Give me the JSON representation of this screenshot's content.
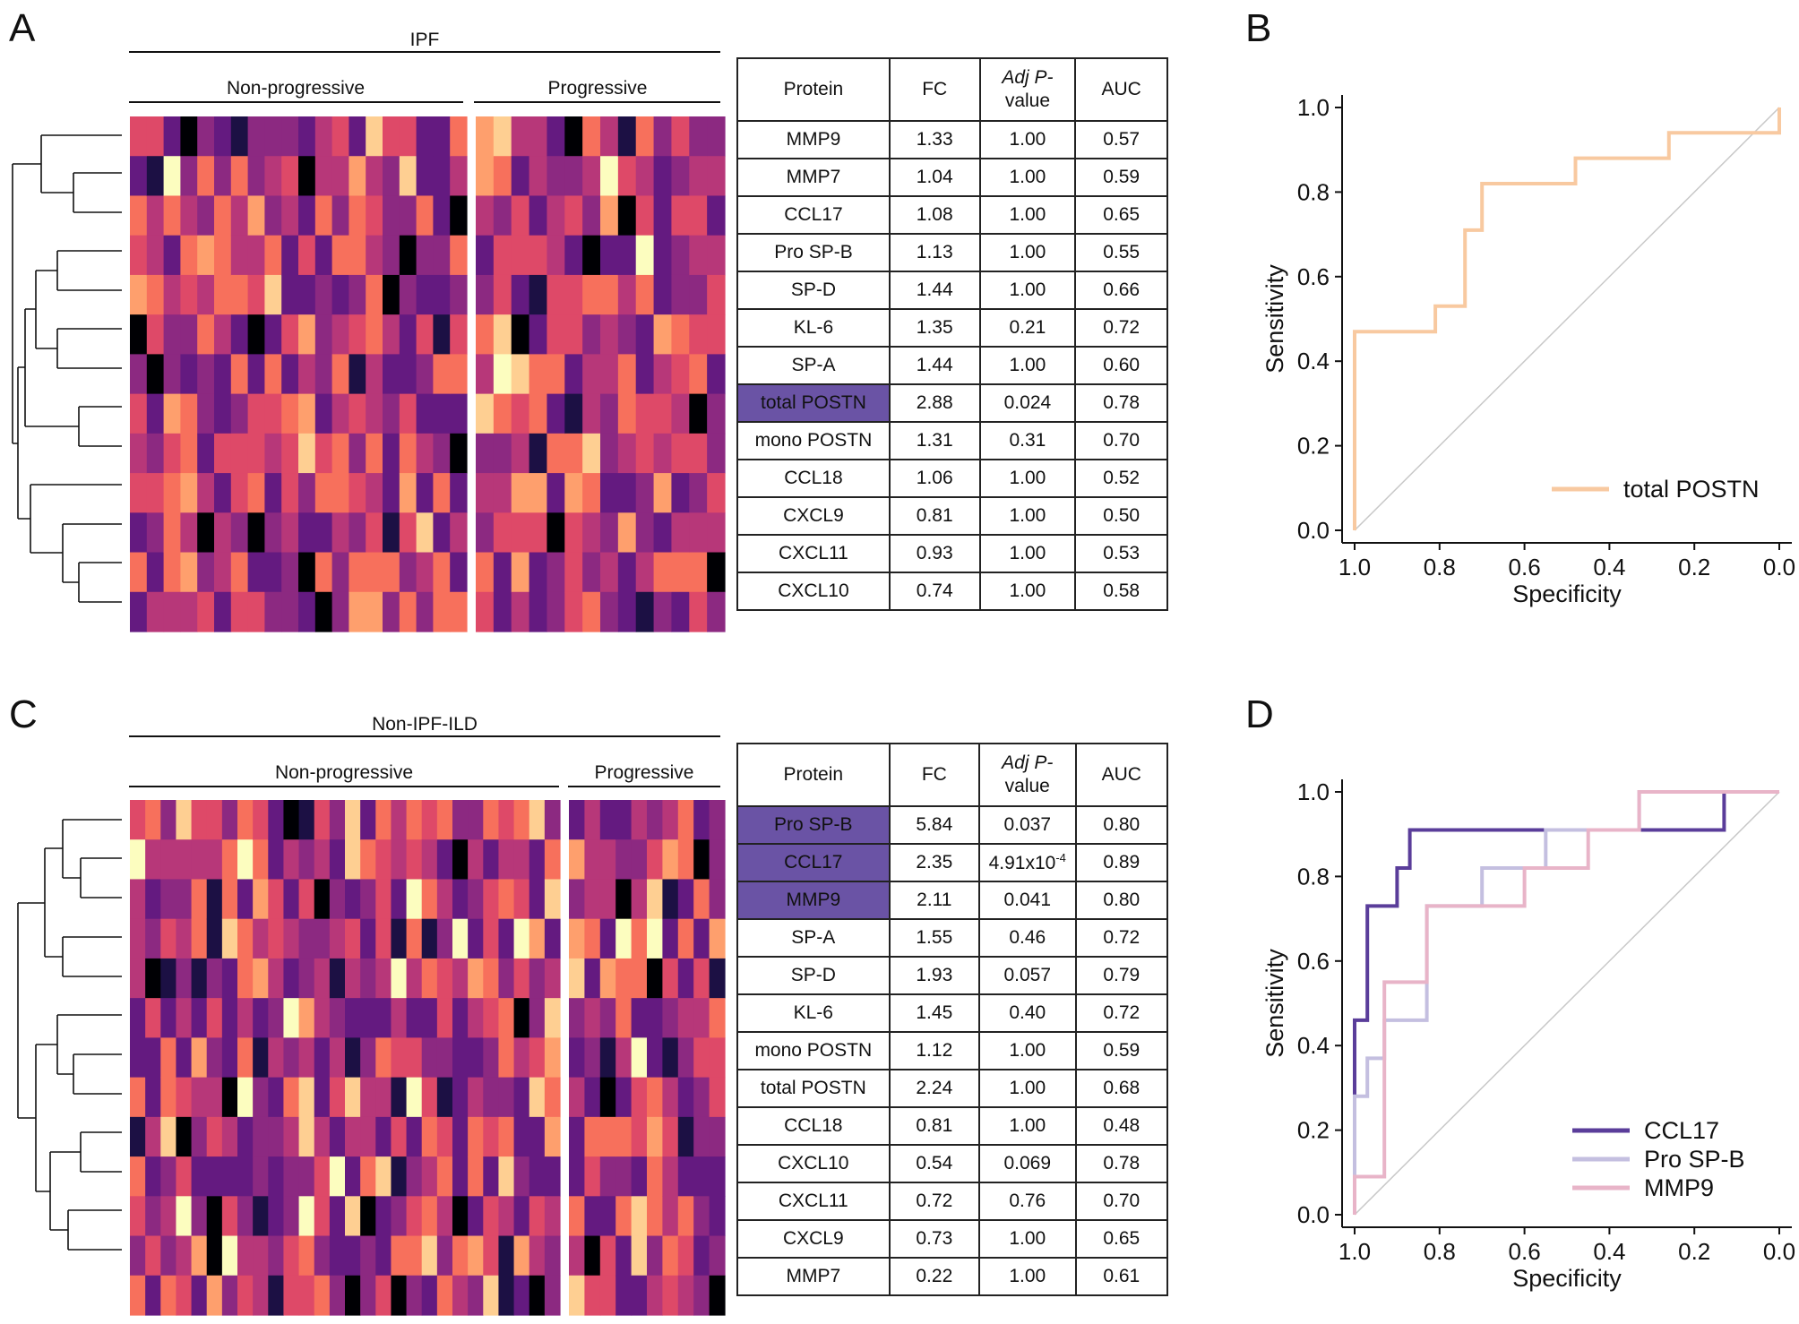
{
  "panels": {
    "A": {
      "letter": "A",
      "heatmap": {
        "title": "IPF",
        "groups": [
          "Non-progressive",
          "Progressive"
        ],
        "group_counts": [
          20,
          14
        ],
        "rows": 13
      },
      "table": {
        "headers": {
          "protein": "Protein",
          "fc": "FC",
          "adj_p_italic": "Adj P-",
          "adj_p_rest": "value",
          "auc": "AUC"
        },
        "rows": [
          {
            "protein": "MMP9",
            "fc": "1.33",
            "p": "1.00",
            "auc": "0.57",
            "highlight": false
          },
          {
            "protein": "MMP7",
            "fc": "1.04",
            "p": "1.00",
            "auc": "0.59",
            "highlight": false
          },
          {
            "protein": "CCL17",
            "fc": "1.08",
            "p": "1.00",
            "auc": "0.65",
            "highlight": false
          },
          {
            "protein": "Pro SP-B",
            "fc": "1.13",
            "p": "1.00",
            "auc": "0.55",
            "highlight": false
          },
          {
            "protein": "SP-D",
            "fc": "1.44",
            "p": "1.00",
            "auc": "0.66",
            "highlight": false
          },
          {
            "protein": "KL-6",
            "fc": "1.35",
            "p": "0.21",
            "auc": "0.72",
            "highlight": false
          },
          {
            "protein": "SP-A",
            "fc": "1.44",
            "p": "1.00",
            "auc": "0.60",
            "highlight": false
          },
          {
            "protein": "total POSTN",
            "fc": "2.88",
            "p": "0.024",
            "auc": "0.78",
            "highlight": true
          },
          {
            "protein": "mono POSTN",
            "fc": "1.31",
            "p": "0.31",
            "auc": "0.70",
            "highlight": false
          },
          {
            "protein": "CCL18",
            "fc": "1.06",
            "p": "1.00",
            "auc": "0.52",
            "highlight": false
          },
          {
            "protein": "CXCL9",
            "fc": "0.81",
            "p": "1.00",
            "auc": "0.50",
            "highlight": false
          },
          {
            "protein": "CXCL11",
            "fc": "0.93",
            "p": "1.00",
            "auc": "0.53",
            "highlight": false
          },
          {
            "protein": "CXCL10",
            "fc": "0.74",
            "p": "1.00",
            "auc": "0.58",
            "highlight": false
          }
        ]
      }
    },
    "C": {
      "letter": "C",
      "heatmap": {
        "title": "Non-IPF-ILD",
        "groups": [
          "Non-progressive",
          "Progressive"
        ],
        "group_counts": [
          28,
          10
        ],
        "rows": 13
      },
      "table": {
        "headers": {
          "protein": "Protein",
          "fc": "FC",
          "adj_p_italic": "Adj P-",
          "adj_p_rest": "value",
          "auc": "AUC"
        },
        "rows": [
          {
            "protein": "Pro SP-B",
            "fc": "5.84",
            "p": "0.037",
            "p_exp": "",
            "auc": "0.80",
            "highlight": true
          },
          {
            "protein": "CCL17",
            "fc": "2.35",
            "p": "4.91x10",
            "p_exp": "-4",
            "auc": "0.89",
            "highlight": true
          },
          {
            "protein": "MMP9",
            "fc": "2.11",
            "p": "0.041",
            "p_exp": "",
            "auc": "0.80",
            "highlight": true
          },
          {
            "protein": "SP-A",
            "fc": "1.55",
            "p": "0.46",
            "p_exp": "",
            "auc": "0.72",
            "highlight": false
          },
          {
            "protein": "SP-D",
            "fc": "1.93",
            "p": "0.057",
            "p_exp": "",
            "auc": "0.79",
            "highlight": false
          },
          {
            "protein": "KL-6",
            "fc": "1.45",
            "p": "0.40",
            "p_exp": "",
            "auc": "0.72",
            "highlight": false
          },
          {
            "protein": "mono POSTN",
            "fc": "1.12",
            "p": "1.00",
            "p_exp": "",
            "auc": "0.59",
            "highlight": false
          },
          {
            "protein": "total POSTN",
            "fc": "2.24",
            "p": "1.00",
            "p_exp": "",
            "auc": "0.68",
            "highlight": false
          },
          {
            "protein": "CCL18",
            "fc": "0.81",
            "p": "1.00",
            "p_exp": "",
            "auc": "0.48",
            "highlight": false
          },
          {
            "protein": "CXCL10",
            "fc": "0.54",
            "p": "0.069",
            "p_exp": "",
            "auc": "0.78",
            "highlight": false
          },
          {
            "protein": "CXCL11",
            "fc": "0.72",
            "p": "0.76",
            "p_exp": "",
            "auc": "0.70",
            "highlight": false
          },
          {
            "protein": "CXCL9",
            "fc": "0.73",
            "p": "1.00",
            "p_exp": "",
            "auc": "0.65",
            "highlight": false
          },
          {
            "protein": "MMP7",
            "fc": "0.22",
            "p": "1.00",
            "p_exp": "",
            "auc": "0.61",
            "highlight": false
          }
        ]
      }
    },
    "B": {
      "letter": "B"
    },
    "D": {
      "letter": "D"
    }
  },
  "chart_data": [
    {
      "panel": "B",
      "type": "line",
      "xlabel": "Specificity",
      "ylabel": "Sensitivity",
      "xlim": [
        1.0,
        0.0
      ],
      "ylim": [
        0.0,
        1.0
      ],
      "xticks": [
        "1.0",
        "0.8",
        "0.6",
        "0.4",
        "0.2",
        "0.0"
      ],
      "yticks": [
        "0.0",
        "0.2",
        "0.4",
        "0.6",
        "0.8",
        "1.0"
      ],
      "legend_position": "bottom-right",
      "series": [
        {
          "name": "total POSTN",
          "color": "#f8c9a0",
          "points": [
            [
              1.0,
              0.0
            ],
            [
              1.0,
              0.47
            ],
            [
              0.81,
              0.47
            ],
            [
              0.81,
              0.53
            ],
            [
              0.74,
              0.53
            ],
            [
              0.74,
              0.71
            ],
            [
              0.7,
              0.71
            ],
            [
              0.7,
              0.82
            ],
            [
              0.48,
              0.82
            ],
            [
              0.48,
              0.88
            ],
            [
              0.26,
              0.88
            ],
            [
              0.26,
              0.94
            ],
            [
              0.0,
              0.94
            ],
            [
              0.0,
              1.0
            ]
          ]
        }
      ],
      "diagonal": true
    },
    {
      "panel": "D",
      "type": "line",
      "xlabel": "Specificity",
      "ylabel": "Sensitivity",
      "xlim": [
        1.0,
        0.0
      ],
      "ylim": [
        0.0,
        1.0
      ],
      "xticks": [
        "1.0",
        "0.8",
        "0.6",
        "0.4",
        "0.2",
        "0.0"
      ],
      "yticks": [
        "0.0",
        "0.2",
        "0.4",
        "0.6",
        "0.8",
        "1.0"
      ],
      "legend_position": "bottom-right",
      "series": [
        {
          "name": "CCL17",
          "color": "#5a3d9a",
          "points": [
            [
              1.0,
              0.0
            ],
            [
              1.0,
              0.46
            ],
            [
              0.97,
              0.46
            ],
            [
              0.97,
              0.73
            ],
            [
              0.9,
              0.73
            ],
            [
              0.9,
              0.82
            ],
            [
              0.87,
              0.82
            ],
            [
              0.87,
              0.91
            ],
            [
              0.13,
              0.91
            ],
            [
              0.13,
              1.0
            ],
            [
              0.0,
              1.0
            ]
          ]
        },
        {
          "name": "Pro SP-B",
          "color": "#c4bfe0",
          "points": [
            [
              1.0,
              0.0
            ],
            [
              1.0,
              0.28
            ],
            [
              0.97,
              0.28
            ],
            [
              0.97,
              0.37
            ],
            [
              0.93,
              0.37
            ],
            [
              0.93,
              0.46
            ],
            [
              0.9,
              0.46
            ],
            [
              0.9,
              0.46
            ],
            [
              0.83,
              0.46
            ],
            [
              0.83,
              0.73
            ],
            [
              0.7,
              0.73
            ],
            [
              0.7,
              0.82
            ],
            [
              0.55,
              0.82
            ],
            [
              0.55,
              0.91
            ],
            [
              0.33,
              0.91
            ],
            [
              0.33,
              1.0
            ],
            [
              0.0,
              1.0
            ]
          ]
        },
        {
          "name": "MMP9",
          "color": "#e8b4c8",
          "points": [
            [
              1.0,
              0.0
            ],
            [
              1.0,
              0.09
            ],
            [
              0.93,
              0.09
            ],
            [
              0.93,
              0.55
            ],
            [
              0.83,
              0.55
            ],
            [
              0.83,
              0.73
            ],
            [
              0.6,
              0.73
            ],
            [
              0.6,
              0.82
            ],
            [
              0.45,
              0.82
            ],
            [
              0.45,
              0.91
            ],
            [
              0.33,
              0.91
            ],
            [
              0.33,
              1.0
            ],
            [
              0.0,
              1.0
            ]
          ]
        }
      ],
      "diagonal": true
    }
  ]
}
